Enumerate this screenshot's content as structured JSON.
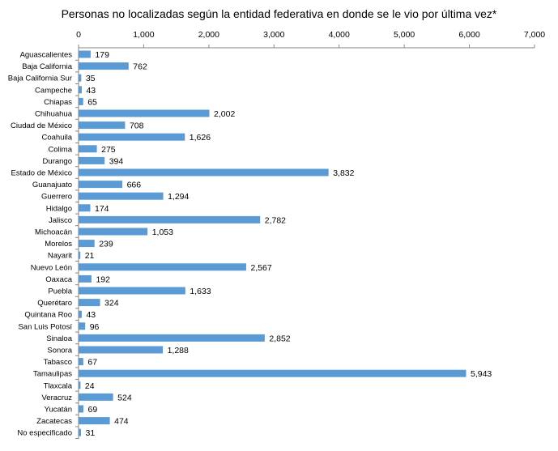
{
  "chart_data": {
    "type": "bar",
    "orientation": "horizontal",
    "title": "Personas no localizadas según la entidad federativa en donde se le vio por última vez*",
    "xlabel": "",
    "ylabel": "",
    "xlim": [
      0,
      7000
    ],
    "x_ticks": [
      "0",
      "1,000",
      "2,000",
      "3,000",
      "4,000",
      "5,000",
      "6,000",
      "7,000"
    ],
    "axis_position": "top",
    "grid": false,
    "legend": "none",
    "bar_color": "#5B9BD5",
    "categories": [
      "Aguascalientes",
      "Baja California",
      "Baja California Sur",
      "Campeche",
      "Chiapas",
      "Chihuahua",
      "Ciudad de México",
      "Coahuila",
      "Colima",
      "Durango",
      "Estado de México",
      "Guanajuato",
      "Guerrero",
      "Hidalgo",
      "Jalisco",
      "Michoacán",
      "Morelos",
      "Nayarit",
      "Nuevo León",
      "Oaxaca",
      "Puebla",
      "Querétaro",
      "Quintana Roo",
      "San Luis Potosí",
      "Sinaloa",
      "Sonora",
      "Tabasco",
      "Tamaulipas",
      "Tlaxcala",
      "Veracruz",
      "Yucatán",
      "Zacatecas",
      "No especificado"
    ],
    "values": [
      179,
      762,
      35,
      43,
      65,
      2002,
      708,
      1626,
      275,
      394,
      3832,
      666,
      1294,
      174,
      2782,
      1053,
      239,
      21,
      2567,
      192,
      1633,
      324,
      43,
      96,
      2852,
      1288,
      67,
      5943,
      24,
      524,
      69,
      474,
      31
    ],
    "data_labels": [
      "179",
      "762",
      "35",
      "43",
      "65",
      "2,002",
      "708",
      "1,626",
      "275",
      "394",
      "3,832",
      "666",
      "1,294",
      "174",
      "2,782",
      "1,053",
      "239",
      "21",
      "2,567",
      "192",
      "1,633",
      "324",
      "43",
      "96",
      "2,852",
      "1,288",
      "67",
      "5,943",
      "24",
      "524",
      "69",
      "474",
      "31"
    ]
  }
}
